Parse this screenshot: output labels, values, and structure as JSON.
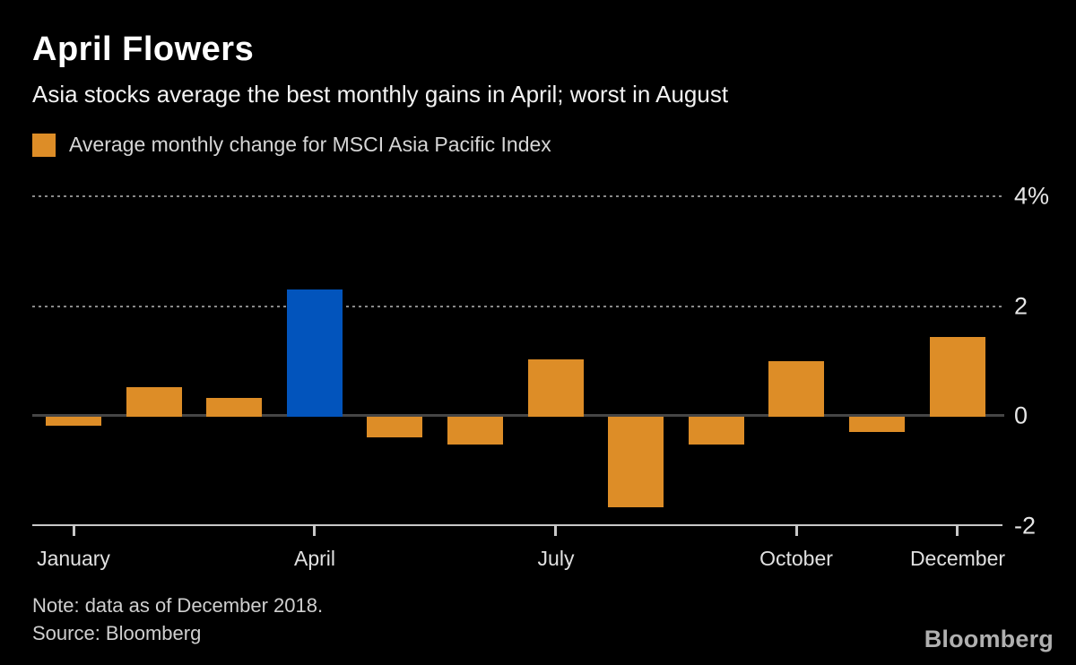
{
  "header": {
    "title": "April Flowers",
    "subtitle": "Asia stocks average the best monthly gains in April; worst in August"
  },
  "legend": {
    "label": "Average monthly change for MSCI Asia Pacific Index",
    "swatch_color": "#DD8D27"
  },
  "chart_data": {
    "type": "bar",
    "title": "April Flowers",
    "series_name": "Average monthly change for MSCI Asia Pacific Index",
    "categories": [
      "January",
      "February",
      "March",
      "April",
      "May",
      "June",
      "July",
      "August",
      "September",
      "October",
      "November",
      "December"
    ],
    "values": [
      -0.17,
      0.54,
      0.34,
      2.32,
      -0.38,
      -0.5,
      1.05,
      -1.65,
      -0.5,
      1.02,
      -0.27,
      1.45
    ],
    "unit": "%",
    "ylim": [
      -2,
      4
    ],
    "y_ticks": [
      {
        "value": 4,
        "label": "4%",
        "style": "dotted"
      },
      {
        "value": 2,
        "label": "2",
        "style": "dotted"
      },
      {
        "value": 0,
        "label": "0",
        "style": "zero"
      },
      {
        "value": -2,
        "label": "-2",
        "style": "axis"
      }
    ],
    "x_tick_labels": [
      "January",
      "April",
      "July",
      "October",
      "December"
    ],
    "bar_color": "#DD8D27",
    "highlight_month": "April",
    "highlight_color": "#0254BC",
    "grid": "horizontal-dotted",
    "legend_position": "top-left"
  },
  "footer": {
    "note": "Note: data as of December 2018.",
    "source": "Source: Bloomberg",
    "logo": "Bloomberg"
  },
  "colors": {
    "background": "#000000",
    "title_text": "#FFFFFF",
    "subtitle_text": "#F2F2F2",
    "legend_text": "#D6D6D6",
    "axis_label_text": "#E6E6E6",
    "gridline": "#8A8A8A",
    "zero_line": "#464646",
    "bottom_axis": "#C8C8C8",
    "footer_text": "#CFCFCF",
    "logo_text": "#B0B0B0"
  }
}
